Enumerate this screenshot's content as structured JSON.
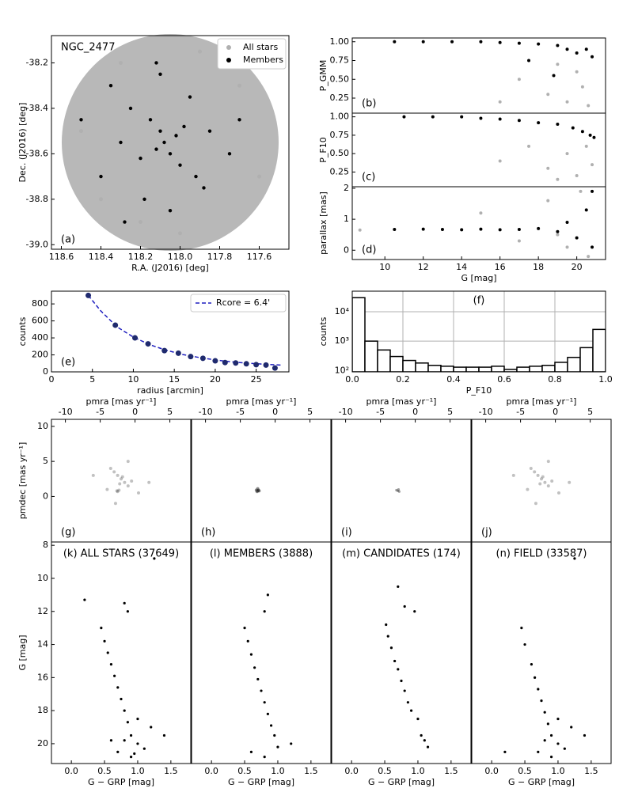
{
  "chart_data": [
    {
      "type": "scatter",
      "title": "NGC_2477",
      "panel_label": "(a)",
      "label_corner": "lower left",
      "xlabel": "R.A. (J2016) [deg]",
      "ylabel": "Dec. (J2016) [deg]",
      "xlim": [
        118.65,
        117.45
      ],
      "ylim": [
        -39.02,
        -38.08
      ],
      "xticks": [
        118.6,
        118.4,
        118.2,
        {
          "value": 118.0,
          "label": "118.0"
        },
        117.8,
        117.6
      ],
      "yticks": [
        -38.2,
        -38.4,
        -38.6,
        -38.8,
        {
          "value": -39.0,
          "label": "-39.0"
        }
      ],
      "legend": "upper right",
      "series": [
        {
          "name": "All stars",
          "color": "#b0b0b0",
          "size": 2.5,
          "x": [
            118.5,
            118.3,
            117.7,
            117.6,
            118.2,
            117.9,
            118.4,
            118.0
          ],
          "y": [
            -38.5,
            -38.2,
            -38.3,
            -38.7,
            -38.9,
            -38.15,
            -38.8,
            -38.95
          ]
        },
        {
          "name": "Members",
          "color": "#000000",
          "size": 2.2,
          "x": [
            118.08,
            118.1,
            118.05,
            118.12,
            118.02,
            118.15,
            118.0,
            117.98,
            118.2,
            118.25,
            117.92,
            118.3,
            117.85,
            118.35,
            118.4,
            117.75,
            118.1,
            118.05,
            118.18,
            117.95,
            118.5,
            117.7,
            118.28,
            117.88,
            118.12
          ],
          "y": [
            -38.55,
            -38.5,
            -38.6,
            -38.58,
            -38.52,
            -38.45,
            -38.65,
            -38.48,
            -38.62,
            -38.4,
            -38.7,
            -38.55,
            -38.5,
            -38.3,
            -38.7,
            -38.6,
            -38.25,
            -38.85,
            -38.8,
            -38.35,
            -38.45,
            -38.45,
            -38.9,
            -38.75,
            -38.2
          ]
        }
      ]
    },
    {
      "type": "scatter",
      "panel_label": "(b)",
      "label_corner": "lower left",
      "ylabel": "P_GMM",
      "xlim": [
        8.3,
        21.5
      ],
      "ylim": [
        0.05,
        1.05
      ],
      "yticks": [
        0.25,
        {
          "value": 0.5,
          "label": "0.50"
        },
        0.75,
        {
          "value": 1.0,
          "label": "1.00"
        }
      ],
      "series": [
        {
          "color": "#b0b0b0",
          "size": 2,
          "x": [
            17,
            18.5,
            19.5,
            20,
            20.3,
            20.6,
            19,
            16
          ],
          "y": [
            0.5,
            0.3,
            0.2,
            0.6,
            0.4,
            0.15,
            0.7,
            0.2
          ]
        },
        {
          "color": "#000000",
          "size": 2,
          "x": [
            10.5,
            12,
            13.5,
            15,
            16,
            17,
            18,
            19,
            19.5,
            20,
            20.5,
            20.8,
            17.5,
            18.8
          ],
          "y": [
            1,
            1,
            1,
            1,
            0.99,
            0.98,
            0.97,
            0.95,
            0.9,
            0.85,
            0.9,
            0.8,
            0.75,
            0.55
          ]
        }
      ]
    },
    {
      "type": "scatter",
      "panel_label": "(c)",
      "label_corner": "lower left",
      "ylabel": "P_F10",
      "xlim": [
        8.3,
        21.5
      ],
      "ylim": [
        0.05,
        1.05
      ],
      "yticks": [
        0.25,
        {
          "value": 0.5,
          "label": "0.50"
        },
        0.75,
        {
          "value": 1.0,
          "label": "1.00"
        }
      ],
      "series": [
        {
          "color": "#b0b0b0",
          "size": 2,
          "x": [
            16,
            17.5,
            18.5,
            19.5,
            20,
            20.5,
            20.8,
            19
          ],
          "y": [
            0.4,
            0.6,
            0.3,
            0.5,
            0.2,
            0.6,
            0.35,
            0.15
          ]
        },
        {
          "color": "#000000",
          "size": 2,
          "x": [
            11,
            12.5,
            14,
            15,
            16,
            17,
            18,
            19,
            19.8,
            20.3,
            20.7,
            20.9
          ],
          "y": [
            1,
            1,
            1,
            0.98,
            0.97,
            0.95,
            0.92,
            0.9,
            0.85,
            0.8,
            0.75,
            0.72
          ]
        }
      ]
    },
    {
      "type": "scatter",
      "panel_label": "(d)",
      "label_corner": "lower left",
      "xlabel": "G [mag]",
      "ylabel": "parallax [mas]",
      "xlim": [
        8.3,
        21.5
      ],
      "ylim": [
        -0.3,
        2.05
      ],
      "xticks": [
        10,
        12,
        14,
        16,
        18,
        20
      ],
      "yticks": [
        0,
        1,
        2
      ],
      "series": [
        {
          "color": "#b0b0b0",
          "size": 2,
          "x": [
            8.7,
            15,
            17,
            18.5,
            19.5,
            20.2,
            20.6,
            19
          ],
          "y": [
            0.65,
            1.2,
            0.3,
            1.6,
            0.1,
            1.9,
            -0.2,
            0.5
          ]
        },
        {
          "color": "#000000",
          "size": 2,
          "x": [
            10.5,
            12,
            13,
            14,
            15,
            16,
            17,
            18,
            19,
            19.5,
            20,
            20.5,
            20.8,
            20.8
          ],
          "y": [
            0.67,
            0.68,
            0.67,
            0.66,
            0.68,
            0.66,
            0.67,
            0.7,
            0.6,
            0.9,
            0.4,
            1.3,
            0.1,
            1.9
          ]
        }
      ]
    },
    {
      "type": "scatter",
      "panel_label": "(e)",
      "label_corner": "lower left",
      "xlabel": "radius [arcmin]",
      "ylabel": "counts",
      "xlim": [
        0,
        29
      ],
      "ylim": [
        0,
        950
      ],
      "xticks": [
        0,
        5,
        10,
        15,
        20,
        25
      ],
      "yticks": [
        0,
        200,
        400,
        600,
        800
      ],
      "legend": "upper right",
      "series": [
        {
          "name": "Rcore =   6.4'",
          "color": "#1f1fbf",
          "line": "dashed",
          "x": [
            4.5,
            6,
            8,
            10,
            12,
            14,
            16,
            18,
            20,
            22,
            24,
            26,
            28
          ],
          "y": [
            900,
            720,
            530,
            410,
            320,
            255,
            205,
            170,
            140,
            118,
            102,
            90,
            80
          ]
        },
        {
          "color": "#1f2a6e",
          "size": 3.5,
          "x": [
            4.5,
            7.8,
            10.2,
            11.8,
            13.8,
            15.5,
            17,
            18.5,
            20,
            21.2,
            22.5,
            23.8,
            25,
            26.2,
            27.3
          ],
          "y": [
            900,
            550,
            400,
            330,
            250,
            220,
            180,
            160,
            130,
            110,
            105,
            95,
            85,
            80,
            45
          ]
        }
      ]
    },
    {
      "type": "histogram",
      "panel_label": "(f)",
      "label_corner": "upper center",
      "xlabel": "P_F10",
      "ylabel": "counts",
      "log_y": true,
      "grid": true,
      "xlim": [
        0,
        1
      ],
      "ylim": [
        90,
        50000
      ],
      "xticks": [
        {
          "value": 0,
          "label": "0.0"
        },
        0.2,
        0.4,
        0.6,
        0.8,
        {
          "value": 1,
          "label": "1.0"
        }
      ],
      "yticks": [
        {
          "value": 100,
          "label": "10²"
        },
        {
          "value": 1000,
          "label": "10³"
        },
        {
          "value": 10000,
          "label": "10⁴"
        }
      ],
      "bins": [
        0,
        0.05,
        0.1,
        0.15,
        0.2,
        0.25,
        0.3,
        0.35,
        0.4,
        0.45,
        0.5,
        0.55,
        0.6,
        0.65,
        0.7,
        0.75,
        0.8,
        0.85,
        0.9,
        0.95,
        1
      ],
      "counts": [
        30000,
        1000,
        500,
        300,
        220,
        180,
        150,
        140,
        130,
        130,
        130,
        140,
        110,
        130,
        140,
        150,
        190,
        280,
        600,
        2500
      ]
    },
    {
      "type": "scatter",
      "panel_label": "(g)",
      "label_corner": "lower left",
      "xaxis": "top",
      "xlabel": "pmra [mas yr⁻¹]",
      "ylabel": "pmdec [mas yr⁻¹]",
      "xlim": [
        -12,
        8
      ],
      "ylim": [
        -6.5,
        11
      ],
      "xticks": [
        -10,
        -5,
        0,
        5
      ],
      "yticks": [
        0,
        5,
        10
      ],
      "series": [
        {
          "color": "#333333",
          "size": 2,
          "opacity": 0.3,
          "x": [
            -2,
            -1.5,
            -2.5,
            -1,
            -3,
            -2.2,
            -1.8,
            -2.6,
            -0.5,
            -3.5,
            -4,
            0.5,
            -6,
            2,
            -1,
            -2.8,
            -2.5,
            -2.3
          ],
          "y": [
            2.5,
            2,
            3,
            1.5,
            3.5,
            1.8,
            2.8,
            0.8,
            2.2,
            4,
            1,
            0.5,
            3,
            2,
            5,
            -1,
            0.7,
            0.9
          ]
        }
      ]
    },
    {
      "type": "scatter",
      "panel_label": "(h)",
      "label_corner": "lower left",
      "xaxis": "top",
      "xlabel": "pmra [mas yr⁻¹]",
      "xlim": [
        -12,
        8
      ],
      "ylim": [
        -6.5,
        11
      ],
      "xticks": [
        -10,
        -5,
        0,
        5
      ],
      "series": [
        {
          "color": "#222222",
          "size": 2,
          "opacity": 0.5,
          "x": [
            -2.5,
            -2.4,
            -2.6,
            -2.3,
            -2.7,
            -2.5
          ],
          "y": [
            0.8,
            0.9,
            0.7,
            0.8,
            0.9,
            1.1
          ]
        }
      ]
    },
    {
      "type": "scatter",
      "panel_label": "(i)",
      "label_corner": "lower left",
      "xaxis": "top",
      "xlabel": "pmra [mas yr⁻¹]",
      "xlim": [
        -12,
        8
      ],
      "ylim": [
        -6.5,
        11
      ],
      "xticks": [
        -10,
        -5,
        0,
        5
      ],
      "series": [
        {
          "color": "#444444",
          "size": 1.6,
          "opacity": 0.5,
          "x": [
            -2.5,
            -2.3,
            -2.7,
            -2.4
          ],
          "y": [
            0.8,
            0.7,
            0.9,
            1
          ]
        }
      ]
    },
    {
      "type": "scatter",
      "panel_label": "(j)",
      "label_corner": "lower left",
      "xaxis": "top",
      "xlabel": "pmra [mas yr⁻¹]",
      "xlim": [
        -12,
        8
      ],
      "ylim": [
        -6.5,
        11
      ],
      "xticks": [
        -10,
        -5,
        0,
        5
      ],
      "series": [
        {
          "color": "#333333",
          "size": 2,
          "opacity": 0.3,
          "x": [
            -2,
            -1.5,
            -2.5,
            -1,
            -3,
            -2.2,
            -1.8,
            -0.5,
            -3.5,
            -4,
            0.5,
            -6,
            2,
            -1,
            -2.8
          ],
          "y": [
            2.5,
            2,
            3,
            1.5,
            3.5,
            1.8,
            2.8,
            2.2,
            4,
            1,
            0.5,
            3,
            2,
            5,
            -1
          ]
        }
      ]
    },
    {
      "type": "scatter",
      "title": "(k) ALL STARS (37649)",
      "xlabel": "G − GRP [mag]",
      "ylabel": "G [mag]",
      "xlim": [
        -0.3,
        1.8
      ],
      "ylim": [
        21.2,
        7.8
      ],
      "xticks": [
        {
          "value": 0,
          "label": "0.0"
        },
        0.5,
        {
          "value": 1,
          "label": "1.0"
        },
        1.5
      ],
      "yticks": [
        8,
        10,
        12,
        14,
        16,
        18,
        20
      ],
      "series": [
        {
          "color": "#000000",
          "size": 1.6,
          "x": [
            0.45,
            0.5,
            0.55,
            0.6,
            0.65,
            0.7,
            0.75,
            0.8,
            0.85,
            0.9,
            1.0,
            1.1,
            0.7,
            0.8,
            0.9,
            1.2,
            1.4,
            0.8,
            0.85,
            1.25,
            0.2,
            0.6,
            1.0,
            0.95
          ],
          "y": [
            13,
            13.8,
            14.5,
            15.2,
            15.9,
            16.6,
            17.3,
            18,
            18.7,
            19.5,
            20,
            20.3,
            20.5,
            19.8,
            20.8,
            19,
            19.5,
            11.5,
            12,
            8.8,
            11.3,
            19.8,
            18.5,
            20.6
          ]
        }
      ]
    },
    {
      "type": "scatter",
      "title": "(l) MEMBERS (3888)",
      "xlabel": "G − GRP [mag]",
      "xlim": [
        -0.3,
        1.8
      ],
      "ylim": [
        21.2,
        7.8
      ],
      "xticks": [
        {
          "value": 0,
          "label": "0.0"
        },
        0.5,
        {
          "value": 1,
          "label": "1.0"
        },
        1.5
      ],
      "series": [
        {
          "color": "#000000",
          "size": 1.6,
          "x": [
            0.5,
            0.55,
            0.6,
            0.65,
            0.7,
            0.75,
            0.8,
            0.85,
            0.9,
            0.95,
            1.0,
            0.6,
            0.8,
            1.2,
            0.85,
            0.8
          ],
          "y": [
            13,
            13.8,
            14.6,
            15.4,
            16.1,
            16.8,
            17.5,
            18.2,
            18.9,
            19.5,
            20.2,
            20.5,
            20.8,
            20,
            11,
            12
          ]
        }
      ]
    },
    {
      "type": "scatter",
      "title": "(m) CANDIDATES (174)",
      "xlabel": "G − GRP [mag]",
      "xlim": [
        -0.3,
        1.8
      ],
      "ylim": [
        21.2,
        7.8
      ],
      "xticks": [
        {
          "value": 0,
          "label": "0.0"
        },
        0.5,
        {
          "value": 1,
          "label": "1.0"
        },
        1.5
      ],
      "series": [
        {
          "color": "#000000",
          "size": 1.6,
          "x": [
            0.52,
            0.55,
            0.6,
            0.65,
            0.7,
            0.75,
            0.8,
            0.85,
            0.9,
            1.0,
            1.1,
            1.15,
            1.05,
            0.7,
            0.8,
            0.95
          ],
          "y": [
            12.8,
            13.5,
            14.2,
            15,
            15.5,
            16.2,
            16.8,
            17.5,
            18,
            18.5,
            19.8,
            20.2,
            19.5,
            10.5,
            11.7,
            12
          ]
        }
      ]
    },
    {
      "type": "scatter",
      "title": "(n) FIELD (33587)",
      "xlabel": "G − GRP [mag]",
      "xlim": [
        -0.3,
        1.8
      ],
      "ylim": [
        21.2,
        7.8
      ],
      "xticks": [
        {
          "value": 0,
          "label": "0.0"
        },
        0.5,
        {
          "value": 1,
          "label": "1.0"
        },
        1.5
      ],
      "series": [
        {
          "color": "#000000",
          "size": 1.6,
          "x": [
            0.45,
            0.5,
            0.6,
            0.65,
            0.7,
            0.75,
            0.8,
            0.85,
            0.9,
            1.0,
            1.1,
            0.7,
            0.8,
            0.9,
            1.2,
            1.4,
            1.25,
            0.2,
            1.0
          ],
          "y": [
            13,
            14,
            15.2,
            16,
            16.7,
            17.4,
            18.1,
            18.8,
            19.5,
            20,
            20.3,
            20.5,
            19.8,
            20.8,
            19,
            19.5,
            8.8,
            20.5,
            18.5
          ]
        }
      ]
    }
  ]
}
